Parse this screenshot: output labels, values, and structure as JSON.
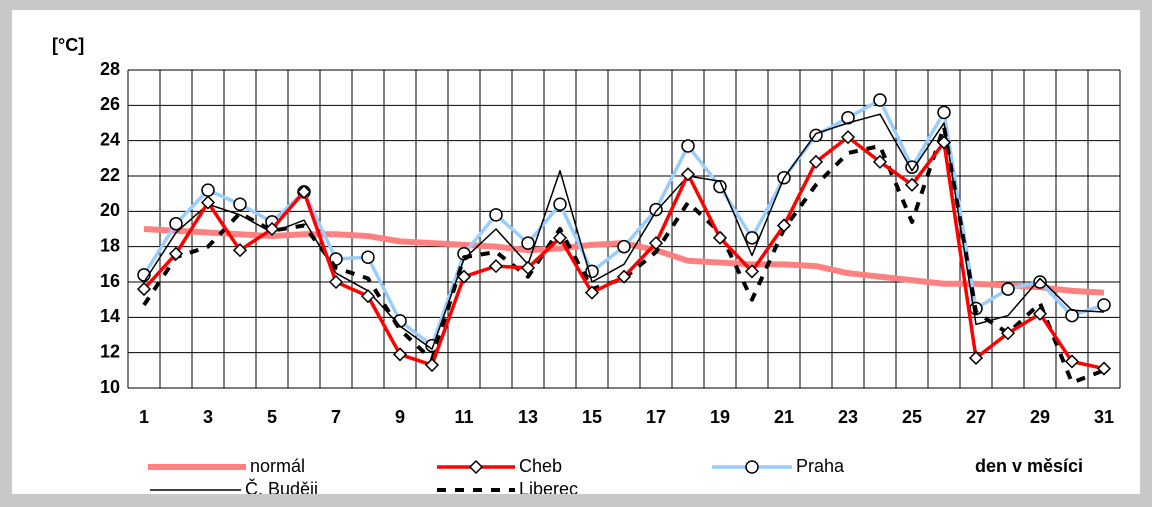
{
  "chart_data": {
    "type": "line",
    "y_label": "[°C]",
    "x_label": "den v měsíci",
    "categories": [
      "1",
      null,
      "3",
      null,
      "5",
      null,
      "7",
      null,
      "9",
      null,
      "11",
      null,
      "13",
      null,
      "15",
      null,
      "17",
      null,
      "19",
      null,
      "21",
      null,
      "23",
      null,
      "25",
      null,
      "27",
      null,
      "29",
      null,
      "31"
    ],
    "ylim": [
      10,
      28
    ],
    "yticks": [
      10,
      12,
      14,
      16,
      18,
      20,
      22,
      24,
      26,
      28
    ],
    "grid": true,
    "series": [
      {
        "name": "normál",
        "color": "#ff8080",
        "values": [
          19.0,
          18.9,
          18.8,
          18.7,
          18.6,
          18.7,
          18.7,
          18.6,
          18.3,
          18.2,
          18.1,
          18.0,
          17.8,
          17.9,
          18.1,
          18.2,
          17.8,
          17.2,
          17.1,
          17.0,
          17.0,
          16.9,
          16.5,
          16.3,
          16.1,
          15.9,
          15.9,
          15.8,
          15.7,
          15.5,
          15.4
        ]
      },
      {
        "name": "Cheb",
        "color": "#ff0000",
        "values": [
          15.6,
          17.6,
          20.5,
          17.8,
          19.0,
          21.1,
          16.0,
          15.2,
          11.9,
          11.3,
          16.3,
          16.9,
          16.8,
          18.5,
          15.4,
          16.3,
          18.2,
          22.1,
          18.5,
          16.6,
          19.2,
          22.8,
          24.2,
          22.8,
          21.5,
          23.9,
          11.7,
          13.1,
          14.2,
          11.5,
          11.1
        ]
      },
      {
        "name": "Praha",
        "color": "#99ccff",
        "values": [
          16.4,
          19.3,
          21.2,
          20.4,
          19.4,
          21.1,
          17.3,
          17.4,
          13.8,
          12.4,
          17.6,
          19.8,
          18.2,
          20.4,
          16.6,
          18.0,
          20.1,
          23.7,
          21.4,
          18.5,
          21.9,
          24.3,
          25.3,
          26.3,
          22.5,
          25.6,
          14.5,
          15.6,
          16.0,
          14.1,
          14.7
        ]
      },
      {
        "name": "Č. Buději",
        "color": "#000000",
        "values": [
          16.0,
          18.8,
          20.4,
          19.8,
          18.8,
          19.5,
          16.5,
          15.5,
          13.5,
          12.2,
          17.3,
          19.0,
          17.0,
          22.3,
          16.0,
          17.0,
          20.0,
          22.0,
          21.7,
          17.5,
          21.9,
          24.4,
          25.0,
          25.5,
          22.3,
          25.0,
          13.6,
          14.1,
          16.2,
          14.4,
          14.3
        ]
      },
      {
        "name": "Liberec",
        "color": "#000000",
        "values": [
          14.7,
          17.4,
          18.0,
          19.9,
          18.9,
          19.2,
          16.8,
          16.2,
          13.3,
          11.6,
          17.4,
          17.7,
          16.3,
          19.0,
          15.6,
          16.2,
          17.7,
          20.5,
          18.8,
          15.0,
          19.0,
          21.5,
          23.3,
          23.7,
          19.4,
          24.8,
          14.3,
          13.1,
          14.8,
          10.3,
          11.0
        ]
      }
    ]
  }
}
